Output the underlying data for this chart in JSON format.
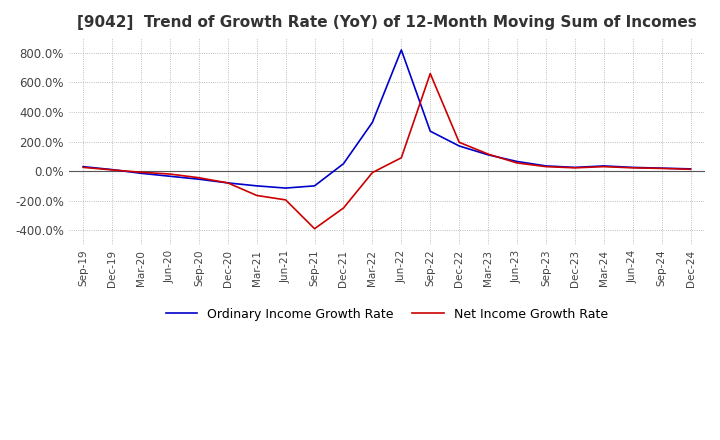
{
  "title": "[9042]  Trend of Growth Rate (YoY) of 12-Month Moving Sum of Incomes",
  "title_fontsize": 11,
  "ylim": [
    -500,
    900
  ],
  "yticks": [
    -400,
    -200,
    0,
    200,
    400,
    600,
    800
  ],
  "ytick_labels": [
    "-400.0%",
    "-200.0%",
    "0.0%",
    "200.0%",
    "400.0%",
    "600.0%",
    "800.0%"
  ],
  "background_color": "#ffffff",
  "grid_color": "#aaaaaa",
  "ordinary_color": "#0000cc",
  "net_color": "#cc0000",
  "legend_labels": [
    "Ordinary Income Growth Rate",
    "Net Income Growth Rate"
  ],
  "x_labels": [
    "Sep-19",
    "Dec-19",
    "Mar-20",
    "Jun-20",
    "Sep-20",
    "Dec-20",
    "Mar-21",
    "Jun-21",
    "Sep-21",
    "Dec-21",
    "Mar-22",
    "Jun-22",
    "Sep-22",
    "Dec-22",
    "Mar-23",
    "Jun-23",
    "Sep-23",
    "Dec-23",
    "Mar-24",
    "Jun-24",
    "Sep-24",
    "Dec-24"
  ],
  "ordinary_values": [
    30,
    10,
    -15,
    -35,
    -55,
    -80,
    -100,
    -115,
    -100,
    50,
    330,
    820,
    270,
    170,
    110,
    65,
    35,
    25,
    35,
    25,
    20,
    15
  ],
  "net_values": [
    25,
    8,
    -8,
    -20,
    -45,
    -80,
    -165,
    -195,
    -390,
    -250,
    -10,
    90,
    660,
    195,
    115,
    55,
    30,
    22,
    30,
    22,
    18,
    12
  ]
}
